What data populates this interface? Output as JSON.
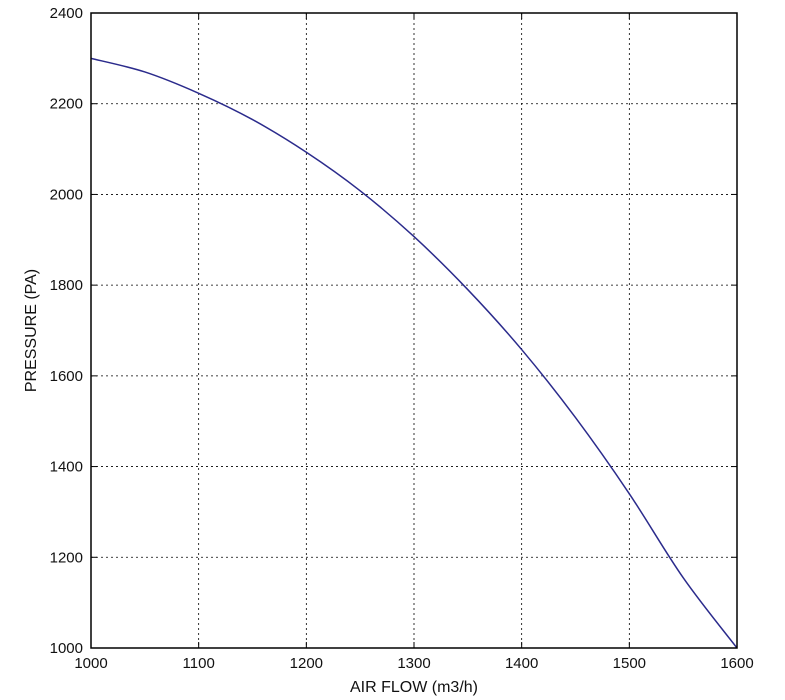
{
  "chart_data": {
    "type": "line",
    "title": "",
    "xlabel": "AIR FLOW (m3/h)",
    "ylabel": "PRESSURE (PA)",
    "xlim": [
      1000,
      1600
    ],
    "ylim": [
      1000,
      2400
    ],
    "x_ticks": [
      1000,
      1100,
      1200,
      1300,
      1400,
      1500,
      1600
    ],
    "y_ticks": [
      1000,
      1200,
      1400,
      1600,
      1800,
      2000,
      2200,
      2400
    ],
    "grid": true,
    "grid_style": "dotted",
    "series": [
      {
        "color": "#2b2b8c",
        "x": [
          1000,
          1050,
          1100,
          1150,
          1200,
          1250,
          1300,
          1350,
          1400,
          1450,
          1500,
          1550,
          1600
        ],
        "y": [
          2300,
          2270,
          2223,
          2165,
          2093,
          2008,
          1907,
          1790,
          1658,
          1508,
          1340,
          1155,
          1000
        ]
      }
    ]
  }
}
